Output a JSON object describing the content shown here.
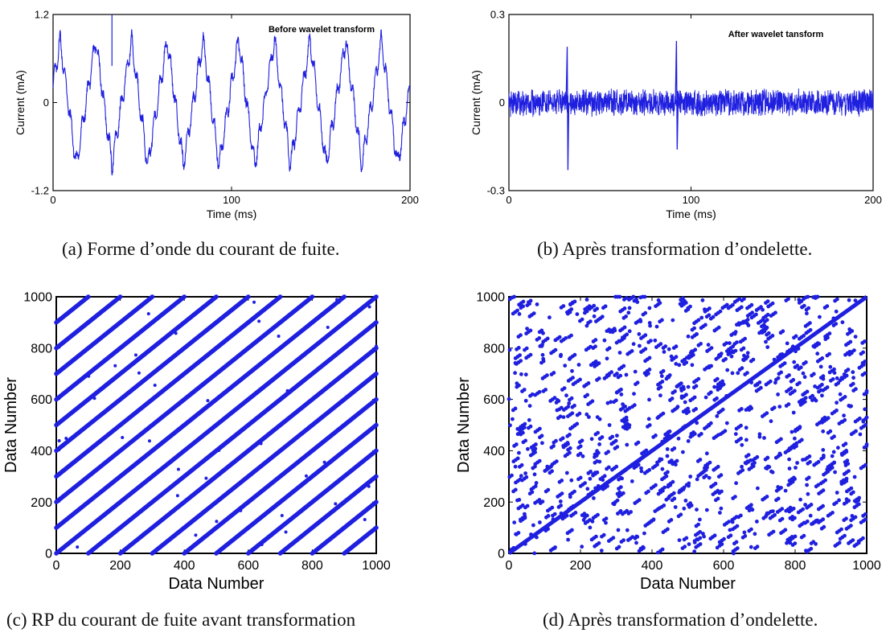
{
  "captions": {
    "a": "(a) Forme d’onde du courant de fuite.",
    "b": "(b) Après transformation d’ondelette.",
    "c": "(c) RP du courant de fuite avant transformation",
    "d": "(d) Après transformation d’ondelette."
  },
  "chart_data": [
    {
      "id": "a",
      "type": "line",
      "annotation": "Before wavelet transform",
      "xlabel": "Time (ms)",
      "ylabel": "Current (mA)",
      "xlim": [
        0,
        200
      ],
      "ylim": [
        -1.2,
        1.2
      ],
      "xticks": [
        "0",
        "100",
        "200"
      ],
      "yticks": [
        "1.2",
        "0",
        "-1.2"
      ],
      "color": "#1f1fe0",
      "signal": {
        "kind": "periodic-leakage-current",
        "period_ms": 20,
        "amplitude_mA": 0.85,
        "x_start": 0,
        "x_end": 200
      }
    },
    {
      "id": "b",
      "type": "line",
      "annotation": "After wavelet tansform",
      "xlabel": "Time (ms)",
      "ylabel": "Current (mA)",
      "xlim": [
        0,
        200
      ],
      "ylim": [
        -0.3,
        0.3
      ],
      "xticks": [
        "0",
        "100",
        "200"
      ],
      "yticks": [
        "0.3",
        "0",
        "-0.3"
      ],
      "color": "#1f1fe0",
      "signal": {
        "kind": "noise-with-spikes",
        "noise_amplitude_mA": 0.05,
        "spikes": [
          {
            "x": 32,
            "up": 0.19,
            "down": -0.23
          },
          {
            "x": 92,
            "up": 0.21,
            "down": -0.16
          }
        ]
      }
    },
    {
      "id": "c",
      "type": "scatter",
      "xlabel": "Data Number",
      "ylabel": "Data Number",
      "xlim": [
        0,
        1000
      ],
      "ylim": [
        0,
        1000
      ],
      "xticks": [
        "0",
        "200",
        "400",
        "600",
        "800",
        "1000"
      ],
      "yticks": [
        "0",
        "200",
        "400",
        "600",
        "800",
        "1000"
      ],
      "color": "#1f1fe0",
      "pattern": {
        "kind": "diagonal-stripes",
        "spacing": 100,
        "slope": 1
      }
    },
    {
      "id": "d",
      "type": "scatter",
      "xlabel": "Data Number",
      "ylabel": "Data Number",
      "xlim": [
        0,
        1000
      ],
      "ylim": [
        0,
        1000
      ],
      "xticks": [
        "0",
        "200",
        "400",
        "600",
        "800",
        "1000"
      ],
      "yticks": [
        "0",
        "200",
        "400",
        "600",
        "800",
        "1000"
      ],
      "color": "#1f1fe0",
      "pattern": {
        "kind": "main-diagonal-with-random-points",
        "random_point_count": 900
      }
    }
  ]
}
